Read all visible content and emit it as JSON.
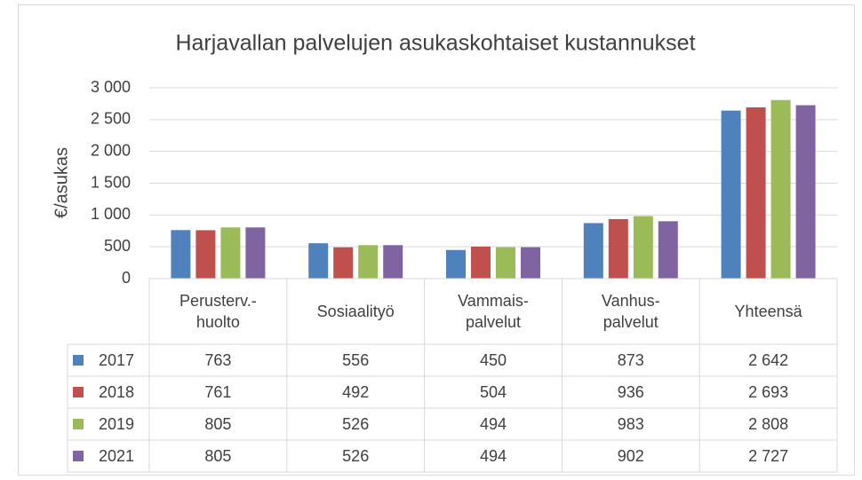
{
  "chart_data": {
    "type": "bar",
    "title": "Harjavallan palvelujen asukaskohtaiset kustannukset",
    "y_label": "€/asukas",
    "categories": [
      "Perusterv.-\nhuolto",
      "Sosiaalityö",
      "Vammais-\npalvelut",
      "Vanhus-\npalvelut",
      "Yhteensä"
    ],
    "series": [
      {
        "name": "2017",
        "color": "#4f81bd",
        "values": [
          763,
          556,
          450,
          873,
          2642
        ],
        "value_labels": [
          "763",
          "556",
          "450",
          "873",
          "2 642"
        ]
      },
      {
        "name": "2018",
        "color": "#c0504d",
        "values": [
          761,
          492,
          504,
          936,
          2693
        ],
        "value_labels": [
          "761",
          "492",
          "504",
          "936",
          "2 693"
        ]
      },
      {
        "name": "2019",
        "color": "#9bbb59",
        "values": [
          805,
          526,
          494,
          983,
          2808
        ],
        "value_labels": [
          "805",
          "526",
          "494",
          "983",
          "2 808"
        ]
      },
      {
        "name": "2021",
        "color": "#8064a2",
        "values": [
          805,
          526,
          494,
          902,
          2727
        ],
        "value_labels": [
          "805",
          "526",
          "494",
          "902",
          "2 727"
        ]
      }
    ],
    "ylim": [
      0,
      3000
    ],
    "yticks": [
      0,
      500,
      {
        "value": 1000,
        "label": "1 000"
      },
      {
        "value": 1500,
        "label": "1 500"
      },
      {
        "value": 2000,
        "label": "2 000"
      },
      {
        "value": 2500,
        "label": "2 500"
      },
      {
        "value": 3000,
        "label": "3 000"
      }
    ],
    "grid": true
  }
}
